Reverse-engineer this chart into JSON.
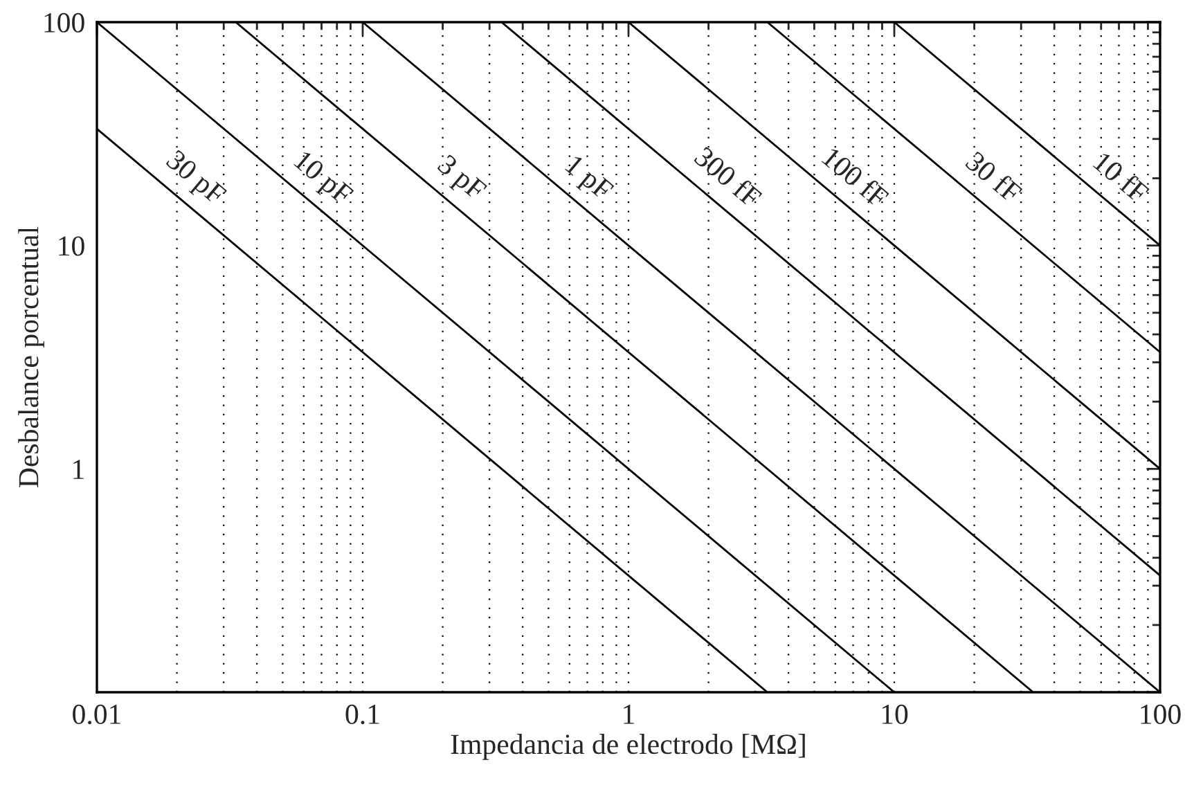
{
  "chart_data": {
    "type": "line",
    "xlabel": "Impedancia de electrodo [MΩ]",
    "ylabel": "Desbalance porcentual",
    "log": "xy",
    "xlim": [
      0.01,
      100
    ],
    "ylim": [
      0.1,
      100
    ],
    "xticks": [
      0.01,
      0.1,
      1,
      10,
      100
    ],
    "yticks": [
      {
        "value": 0.1,
        "label": null
      },
      1,
      10,
      100
    ],
    "grid": "x",
    "legend": false,
    "marker": "none",
    "line_style": "solid",
    "series": [
      {
        "name": "30 pF",
        "color": "#000000",
        "x": [
          0.01,
          3.33
        ],
        "values": [
          33.3,
          0.1
        ]
      },
      {
        "name": "10 pF",
        "color": "#000000",
        "x": [
          0.01,
          10
        ],
        "values": [
          100,
          0.1
        ]
      },
      {
        "name": "3 pF",
        "color": "#000000",
        "x": [
          0.0333,
          33.3
        ],
        "values": [
          100,
          0.1
        ]
      },
      {
        "name": "1 pF",
        "color": "#000000",
        "x": [
          0.1,
          100
        ],
        "values": [
          100,
          0.1
        ]
      },
      {
        "name": "300 fF",
        "color": "#000000",
        "x": [
          0.333,
          100
        ],
        "values": [
          100,
          0.333
        ]
      },
      {
        "name": "100 fF",
        "color": "#000000",
        "x": [
          1,
          100
        ],
        "values": [
          100,
          1
        ]
      },
      {
        "name": "30 fF",
        "color": "#000000",
        "x": [
          3.33,
          100
        ],
        "values": [
          100,
          3.33
        ]
      },
      {
        "name": "10 fF",
        "color": "#000000",
        "x": [
          10,
          100
        ],
        "values": [
          100,
          10
        ]
      }
    ]
  }
}
